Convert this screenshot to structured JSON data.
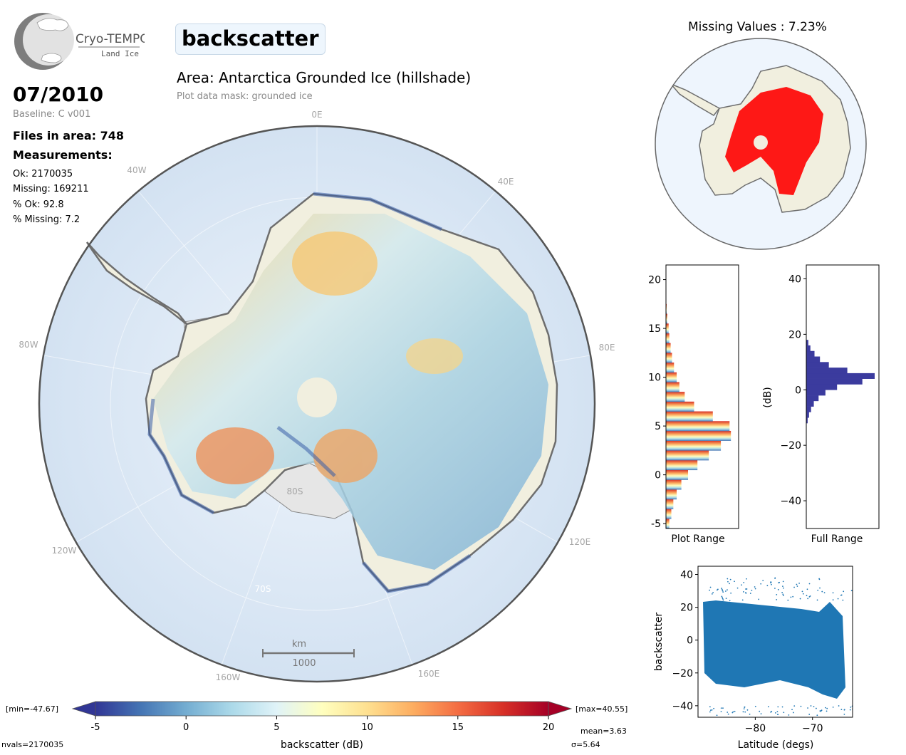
{
  "header": {
    "logo_text": "Cryo-TEMPO",
    "logo_subtext": "Land Ice",
    "parameter": "backscatter",
    "area_title": "Area: Antarctica Grounded Ice (hillshade)",
    "mask_note": "Plot data mask: grounded ice"
  },
  "info": {
    "date": "07/2010",
    "baseline": "Baseline: C v001",
    "files": "Files in area: 748",
    "measurements_title": "Measurements:",
    "ok": "Ok: 2170035",
    "missing": "Missing: 169211",
    "pct_ok": "% Ok: 92.8",
    "pct_missing": "% Missing: 7.2"
  },
  "map": {
    "lon_labels": [
      "0E",
      "40E",
      "80E",
      "120E",
      "160E",
      "160W",
      "120W",
      "80W",
      "40W"
    ],
    "lat_labels": [
      "80S",
      "70S"
    ],
    "scale_unit": "km",
    "scale_value": "1000",
    "colors": {
      "ocean": "#dce8f4",
      "land_fill": "#f1efdf",
      "ice_shelf": "#e8e8e8",
      "coast": "#6e6e6e"
    }
  },
  "missing_map": {
    "title": "Missing Values : 7.23%",
    "missing_color": "#ff0000"
  },
  "colorbar": {
    "label": "backscatter (dB)",
    "ticks": [
      "-5",
      "0",
      "5",
      "10",
      "15",
      "20"
    ],
    "min_label": "[min=-47.67]",
    "max_label": "[max=40.55]",
    "nvals": "nvals=2170035",
    "mean": "mean=3.63",
    "sigma": "σ=5.64",
    "colors": [
      "#313695",
      "#4575b4",
      "#74add1",
      "#abd9e9",
      "#e0f3f8",
      "#ffffbf",
      "#fee090",
      "#fdae61",
      "#f46d43",
      "#d73027",
      "#a50026"
    ]
  },
  "chart_data": [
    {
      "type": "histogram",
      "xlabel": "Plot Range",
      "ylim": [
        -5.5,
        21.5
      ],
      "yticks": [
        "-5",
        "0",
        "5",
        "10",
        "15",
        "20"
      ],
      "bin_centers": [
        -5.0,
        -4.0,
        -3.0,
        -2.0,
        -1.0,
        0.0,
        1.0,
        2.0,
        3.0,
        4.0,
        5.0,
        6.0,
        7.0,
        8.0,
        9.0,
        10.0,
        11.0,
        12.0,
        13.0,
        14.0,
        15.0,
        16.0,
        17.0
      ],
      "relative_counts": [
        0.05,
        0.08,
        0.11,
        0.16,
        0.23,
        0.33,
        0.47,
        0.64,
        0.82,
        0.97,
        0.95,
        0.7,
        0.42,
        0.28,
        0.2,
        0.16,
        0.12,
        0.09,
        0.07,
        0.05,
        0.04,
        0.02,
        0.01
      ]
    },
    {
      "type": "histogram",
      "xlabel": "Full Range",
      "ylabel": "(dB)",
      "ylim": [
        -50,
        45
      ],
      "yticks": [
        "40",
        "20",
        "0",
        "−20",
        "−40"
      ],
      "color": "#3b3b9e",
      "bin_centers": [
        -11,
        -9,
        -7,
        -5,
        -3,
        -1,
        1,
        3,
        5,
        7,
        9,
        11,
        13,
        15,
        17
      ],
      "relative_counts": [
        0.02,
        0.04,
        0.07,
        0.11,
        0.18,
        0.28,
        0.45,
        0.82,
        1.0,
        0.6,
        0.33,
        0.2,
        0.12,
        0.06,
        0.03
      ]
    },
    {
      "type": "scatter",
      "xlabel": "Latitude (degs)",
      "ylabel": "backscatter",
      "xlim": [
        -90,
        -63
      ],
      "ylim": [
        -47,
        45
      ],
      "xticks": [
        "−80",
        "−70"
      ],
      "yticks": [
        "40",
        "20",
        "0",
        "−20",
        "−40"
      ],
      "color": "#1f77b4"
    }
  ]
}
